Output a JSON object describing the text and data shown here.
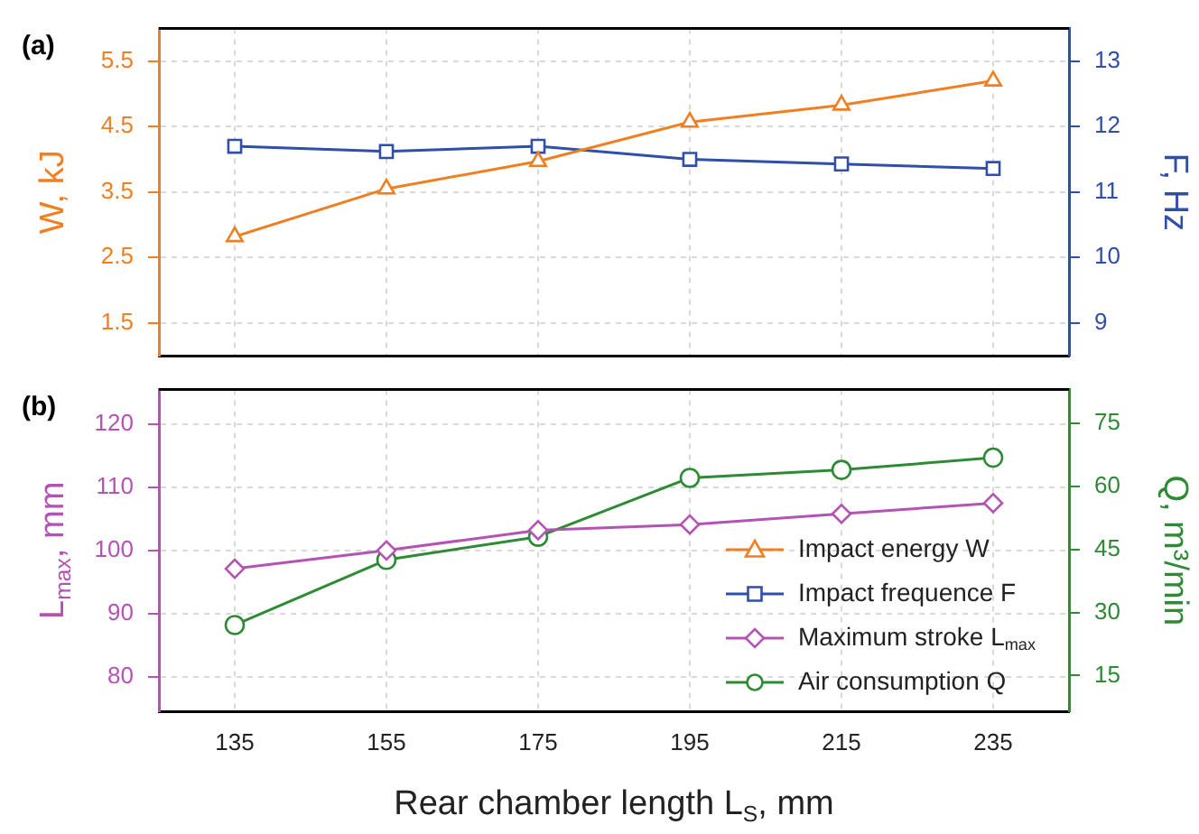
{
  "chart_data": [
    {
      "type": "line",
      "title": "(a)",
      "ylabel": "W, kJ",
      "y2label": "F, Hz",
      "x": [
        135,
        155,
        175,
        195,
        215,
        235
      ],
      "xlim": [
        125,
        245
      ],
      "xticks": [
        135,
        155,
        175,
        195,
        215,
        235
      ],
      "ylim": [
        1,
        6
      ],
      "yticks": [
        1.5,
        2.5,
        3.5,
        4.5,
        5.5
      ],
      "y2lim": [
        8.5,
        13.5
      ],
      "y2ticks": [
        9,
        10,
        11,
        12,
        13
      ],
      "grid": true,
      "tick_labels": "y",
      "legend": "bottom right",
      "line_style": "solid",
      "series": [
        {
          "name": "Impact energy W",
          "color": "#f07f22",
          "marker": "triangle",
          "values": [
            2.82,
            3.55,
            3.97,
            4.57,
            4.83,
            5.2
          ]
        },
        {
          "name": "Impact frequence F",
          "color": "#2f4fa8",
          "marker": "square",
          "axis": "y2",
          "values": [
            11.7,
            11.62,
            11.7,
            11.5,
            11.43,
            11.36
          ]
        }
      ]
    },
    {
      "type": "line",
      "title": "(b)",
      "xlabel": "Rear chamber length L$_{S}$, mm",
      "ylabel": "L$_{max}$, mm",
      "y2label": "Q, m³/min",
      "x": [
        135,
        155,
        175,
        195,
        215,
        235
      ],
      "xlim": [
        125,
        245
      ],
      "xticks": [
        135,
        155,
        175,
        195,
        215,
        235
      ],
      "ylim": [
        74.5,
        125.5
      ],
      "yticks": [
        80,
        90,
        100,
        110,
        120
      ],
      "y2lim": [
        6.5,
        83
      ],
      "y2ticks": [
        15,
        30,
        45,
        60,
        75
      ],
      "grid": true,
      "legend": "bottom right",
      "line_style": "solid",
      "series": [
        {
          "name": "Maximum stroke L$_{max}$",
          "color": "#b553b5",
          "marker": "diamond",
          "values": [
            97.1,
            100,
            103.2,
            104.1,
            105.8,
            107.5
          ]
        },
        {
          "name": "Air consumption Q",
          "color": "#2f8a35",
          "marker": "circle",
          "axis": "y2",
          "values": [
            27,
            42.5,
            48,
            62,
            63.9,
            66.8
          ]
        }
      ]
    }
  ]
}
